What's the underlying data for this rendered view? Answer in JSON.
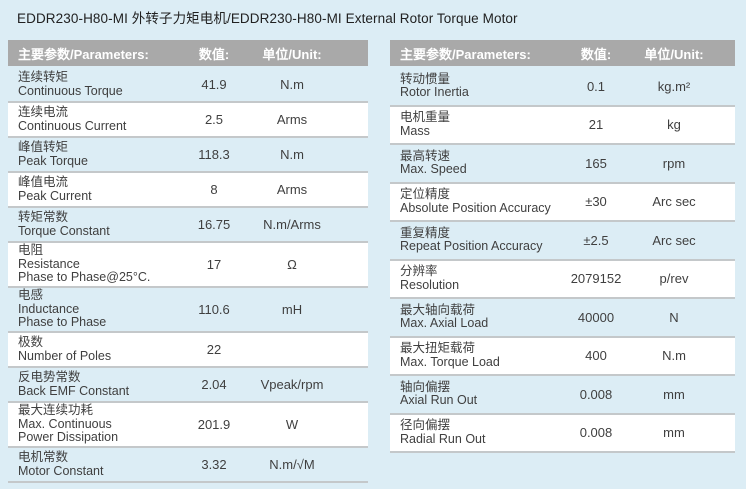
{
  "title": "EDDR230-H80-MI 外转子力矩电机/EDDR230-H80-MI External Rotor Torque Motor",
  "header": {
    "param": "主要参数/Parameters:",
    "value": "数值:",
    "unit": "单位/Unit:"
  },
  "colors": {
    "page_bg": "#dcedf5",
    "header_bg": "#a9a9a9",
    "header_text": "#ffffff",
    "row_alt": "#ffffff",
    "divider": "#c4c8ca",
    "text": "#3f3f3f",
    "title_text": "#212121"
  },
  "left_table": {
    "rows": [
      {
        "zh": "连续转矩",
        "en": "Continuous Torque",
        "value": "41.9",
        "unit": "N.m"
      },
      {
        "zh": "连续电流",
        "en": "Continuous Current",
        "value": "2.5",
        "unit": "Arms"
      },
      {
        "zh": "峰值转矩",
        "en": "Peak Torque",
        "value": "118.3",
        "unit": "N.m"
      },
      {
        "zh": "峰值电流",
        "en": "Peak Current",
        "value": "8",
        "unit": "Arms"
      },
      {
        "zh": "转矩常数",
        "en": "Torque Constant",
        "value": "16.75",
        "unit": "N.m/Arms"
      },
      {
        "zh": "电阻",
        "en": "Resistance",
        "en2": "Phase to Phase@25°C.",
        "value": "17",
        "unit": "Ω"
      },
      {
        "zh": "电感",
        "en": "Inductance",
        "en2": "Phase to Phase",
        "value": "110.6",
        "unit": "mH"
      },
      {
        "zh": "极数",
        "en": "Number of Poles",
        "value": "22",
        "unit": ""
      },
      {
        "zh": "反电势常数",
        "en": "Back EMF Constant",
        "value": "2.04",
        "unit": "Vpeak/rpm"
      },
      {
        "zh": "最大连续功耗",
        "en": "Max. Continuous",
        "en2": "Power Dissipation",
        "value": "201.9",
        "unit": "W"
      },
      {
        "zh": "电机常数",
        "en": "Motor Constant",
        "value": "3.32",
        "unit": "N.m/√M"
      }
    ]
  },
  "right_table": {
    "rows": [
      {
        "zh": "转动惯量",
        "en": "Rotor Inertia",
        "value": "0.1",
        "unit": "kg.m²"
      },
      {
        "zh": "电机重量",
        "en": "Mass",
        "value": "21",
        "unit": "kg"
      },
      {
        "zh": "最高转速",
        "en": "Max. Speed",
        "value": "165",
        "unit": "rpm"
      },
      {
        "zh": "定位精度",
        "en": "Absolute Position Accuracy",
        "value": "±30",
        "unit": "Arc sec"
      },
      {
        "zh": "重复精度",
        "en": "Repeat Position Accuracy",
        "value": "±2.5",
        "unit": "Arc sec"
      },
      {
        "zh": "分辨率",
        "en": "Resolution",
        "value": "2079152",
        "unit": "p/rev"
      },
      {
        "zh": "最大轴向载荷",
        "en": "Max. Axial Load",
        "value": "40000",
        "unit": "N"
      },
      {
        "zh": "最大扭矩载荷",
        "en": "Max. Torque Load",
        "value": "400",
        "unit": "N.m"
      },
      {
        "zh": "轴向偏摆",
        "en": "Axial Run Out",
        "value": "0.008",
        "unit": "mm"
      },
      {
        "zh": "径向偏摆",
        "en": "Radial Run Out",
        "value": "0.008",
        "unit": "mm"
      }
    ]
  }
}
